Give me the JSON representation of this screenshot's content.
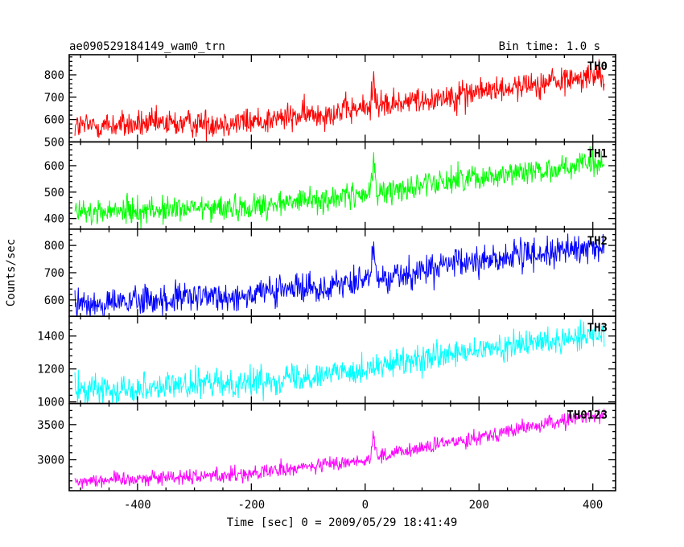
{
  "header": {
    "title": "ae090529184149_wam0_trn",
    "bin_time": "Bin time: 1.0 s"
  },
  "chart_data": {
    "type": "line",
    "title": "ae090529184149_wam0_trn",
    "bin_time_s": 1.0,
    "xlabel": "Time [sec] 0 = 2009/05/29 18:41:49",
    "ylabel": "Counts/sec",
    "xlim": [
      -520,
      440
    ],
    "xticks": [
      -400,
      -200,
      0,
      200,
      400
    ],
    "data_x_range": [
      -510,
      420
    ],
    "grid": false,
    "legend": "none",
    "panels": [
      {
        "name": "TH0",
        "color": "#ff0000",
        "ylim": [
          500,
          890
        ],
        "yticks": [
          500,
          600,
          700,
          800
        ],
        "trend": [
          [
            -510,
            570
          ],
          [
            -200,
            590
          ],
          [
            0,
            650
          ],
          [
            200,
            725
          ],
          [
            420,
            800
          ]
        ],
        "noise": 32,
        "spikes": [
          {
            "x": 15,
            "y": 835
          }
        ]
      },
      {
        "name": "TH1",
        "color": "#00ff00",
        "ylim": [
          360,
          690
        ],
        "yticks": [
          400,
          500,
          600
        ],
        "trend": [
          [
            -510,
            420
          ],
          [
            -200,
            445
          ],
          [
            0,
            490
          ],
          [
            200,
            560
          ],
          [
            420,
            610
          ]
        ],
        "noise": 25,
        "spikes": [
          {
            "x": 15,
            "y": 665
          }
        ]
      },
      {
        "name": "TH2",
        "color": "#0000ff",
        "ylim": [
          540,
          860
        ],
        "yticks": [
          600,
          700,
          800
        ],
        "trend": [
          [
            -510,
            580
          ],
          [
            -200,
            620
          ],
          [
            0,
            670
          ],
          [
            200,
            745
          ],
          [
            420,
            795
          ]
        ],
        "noise": 28,
        "spikes": [
          {
            "x": 15,
            "y": 815
          }
        ]
      },
      {
        "name": "TH3",
        "color": "#00ffff",
        "ylim": [
          990,
          1520
        ],
        "yticks": [
          1000,
          1200,
          1400
        ],
        "trend": [
          [
            -510,
            1070
          ],
          [
            -200,
            1120
          ],
          [
            0,
            1200
          ],
          [
            200,
            1310
          ],
          [
            420,
            1420
          ]
        ],
        "noise": 42,
        "spikes": []
      },
      {
        "name": "TH0123",
        "color": "#ff00ff",
        "ylim": [
          2560,
          3800
        ],
        "yticks": [
          3000,
          3500
        ],
        "trend": [
          [
            -510,
            2700
          ],
          [
            -200,
            2800
          ],
          [
            0,
            3000
          ],
          [
            200,
            3330
          ],
          [
            420,
            3660
          ]
        ],
        "noise": 55,
        "spikes": [
          {
            "x": 15,
            "y": 3520
          }
        ]
      }
    ]
  }
}
